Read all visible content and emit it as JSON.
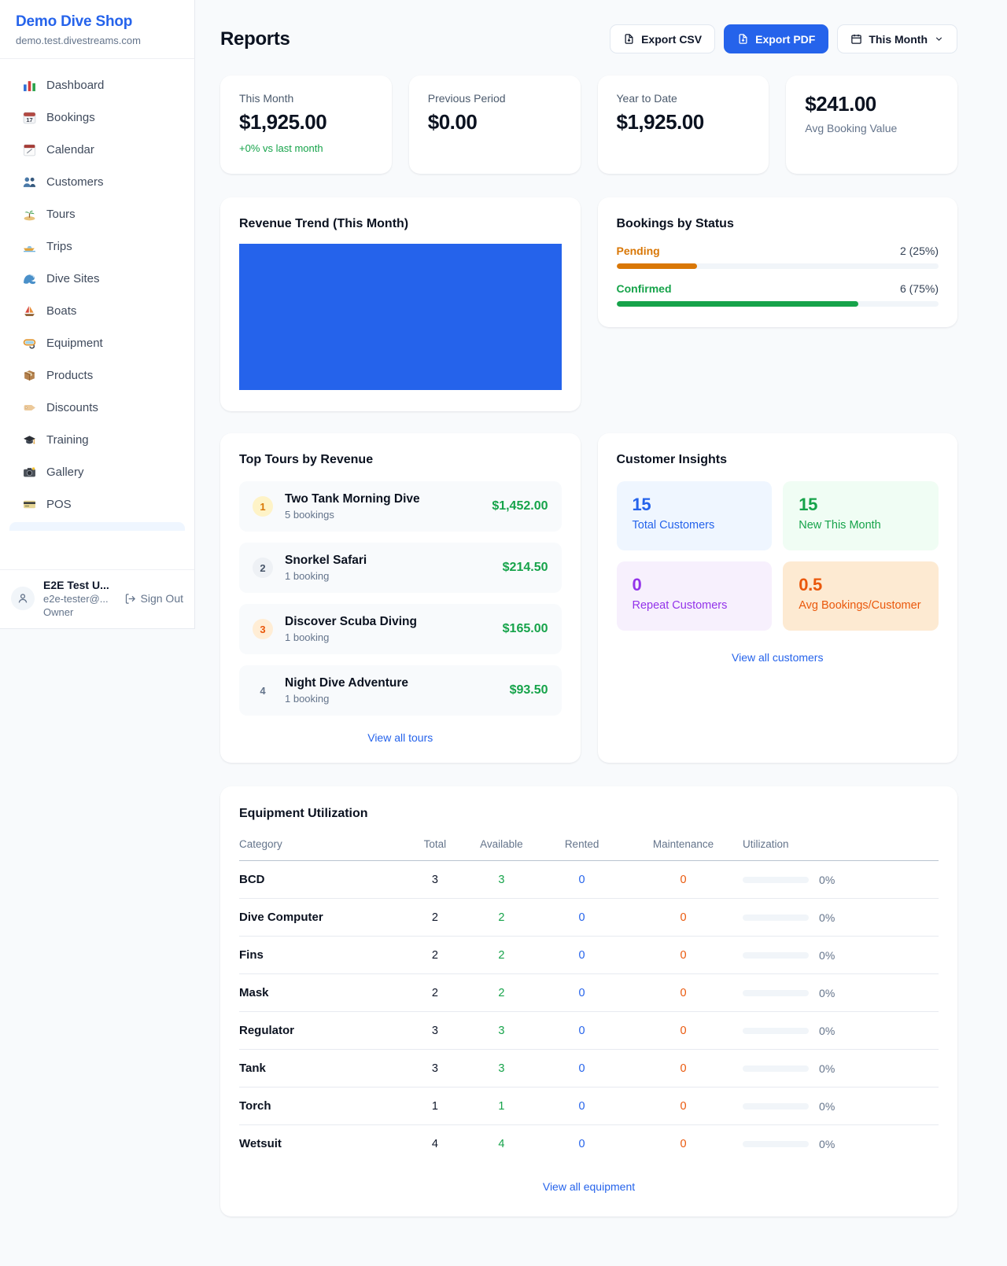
{
  "sidebar": {
    "brand_name": "Demo Dive Shop",
    "brand_domain": "demo.test.divestreams.com",
    "nav": [
      {
        "icon": "bar-chart-icon",
        "label": "Dashboard"
      },
      {
        "icon": "calendar-date-icon",
        "label": "Bookings"
      },
      {
        "icon": "tear-off-calendar-icon",
        "label": "Calendar"
      },
      {
        "icon": "people-icon",
        "label": "Customers"
      },
      {
        "icon": "island-icon",
        "label": "Tours"
      },
      {
        "icon": "speedboat-icon",
        "label": "Trips"
      },
      {
        "icon": "wave-icon",
        "label": "Dive Sites"
      },
      {
        "icon": "sailboat-icon",
        "label": "Boats"
      },
      {
        "icon": "dive-mask-icon",
        "label": "Equipment"
      },
      {
        "icon": "package-icon",
        "label": "Products"
      },
      {
        "icon": "tag-icon",
        "label": "Discounts"
      },
      {
        "icon": "graduation-cap-icon",
        "label": "Training"
      },
      {
        "icon": "camera-icon",
        "label": "Gallery"
      },
      {
        "icon": "credit-card-icon",
        "label": "POS"
      }
    ],
    "user": {
      "name": "E2E Test U...",
      "email": "e2e-tester@...",
      "role": "Owner",
      "sign_out_label": "Sign Out"
    }
  },
  "header": {
    "title": "Reports",
    "export_csv_label": "Export CSV",
    "export_pdf_label": "Export PDF",
    "period_label": "This Month"
  },
  "stats": {
    "this_month": {
      "label": "This Month",
      "value": "$1,925.00",
      "delta": "+0% vs last month"
    },
    "previous_period": {
      "label": "Previous Period",
      "value": "$0.00"
    },
    "year_to_date": {
      "label": "Year to Date",
      "value": "$1,925.00"
    },
    "avg_booking": {
      "value": "$241.00",
      "label": "Avg Booking Value"
    }
  },
  "revenue_trend": {
    "title": "Revenue Trend (This Month)",
    "bar_color": "#2563eb",
    "note_chart": {
      "type": "bar",
      "description": "single bar filling entire plot area, no axis labels visible"
    }
  },
  "bookings_by_status": {
    "title": "Bookings by Status",
    "items": [
      {
        "label": "Pending",
        "value_text": "2 (25%)",
        "count": 2,
        "pct": 25,
        "color": "#d97706"
      },
      {
        "label": "Confirmed",
        "value_text": "6 (75%)",
        "count": 6,
        "pct": 75,
        "color": "#16a34a"
      }
    ]
  },
  "top_tours": {
    "title": "Top Tours by Revenue",
    "view_all_label": "View all tours",
    "items": [
      {
        "rank": "1",
        "name": "Two Tank Morning Dive",
        "bookings": "5 bookings",
        "revenue": "$1,452.00"
      },
      {
        "rank": "2",
        "name": "Snorkel Safari",
        "bookings": "1 booking",
        "revenue": "$214.50"
      },
      {
        "rank": "3",
        "name": "Discover Scuba Diving",
        "bookings": "1 booking",
        "revenue": "$165.00"
      },
      {
        "rank": "4",
        "name": "Night Dive Adventure",
        "bookings": "1 booking",
        "revenue": "$93.50"
      }
    ]
  },
  "customer_insights": {
    "title": "Customer Insights",
    "view_all_label": "View all customers",
    "tiles": [
      {
        "value": "15",
        "label": "Total Customers",
        "color": "#2563eb"
      },
      {
        "value": "15",
        "label": "New This Month",
        "color": "#16a34a"
      },
      {
        "value": "0",
        "label": "Repeat Customers",
        "color": "#9333ea"
      },
      {
        "value": "0.5",
        "label": "Avg Bookings/Customer",
        "color": "#ea580c"
      }
    ]
  },
  "equipment": {
    "title": "Equipment Utilization",
    "view_all_label": "View all equipment",
    "columns": [
      "Category",
      "Total",
      "Available",
      "Rented",
      "Maintenance",
      "Utilization"
    ],
    "rows": [
      {
        "category": "BCD",
        "total": "3",
        "available": "3",
        "rented": "0",
        "maintenance": "0",
        "utilization": "0%",
        "pct": 0
      },
      {
        "category": "Dive Computer",
        "total": "2",
        "available": "2",
        "rented": "0",
        "maintenance": "0",
        "utilization": "0%",
        "pct": 0
      },
      {
        "category": "Fins",
        "total": "2",
        "available": "2",
        "rented": "0",
        "maintenance": "0",
        "utilization": "0%",
        "pct": 0
      },
      {
        "category": "Mask",
        "total": "2",
        "available": "2",
        "rented": "0",
        "maintenance": "0",
        "utilization": "0%",
        "pct": 0
      },
      {
        "category": "Regulator",
        "total": "3",
        "available": "3",
        "rented": "0",
        "maintenance": "0",
        "utilization": "0%",
        "pct": 0
      },
      {
        "category": "Tank",
        "total": "3",
        "available": "3",
        "rented": "0",
        "maintenance": "0",
        "utilization": "0%",
        "pct": 0
      },
      {
        "category": "Torch",
        "total": "1",
        "available": "1",
        "rented": "0",
        "maintenance": "0",
        "utilization": "0%",
        "pct": 0
      },
      {
        "category": "Wetsuit",
        "total": "4",
        "available": "4",
        "rented": "0",
        "maintenance": "0",
        "utilization": "0%",
        "pct": 0
      }
    ]
  }
}
